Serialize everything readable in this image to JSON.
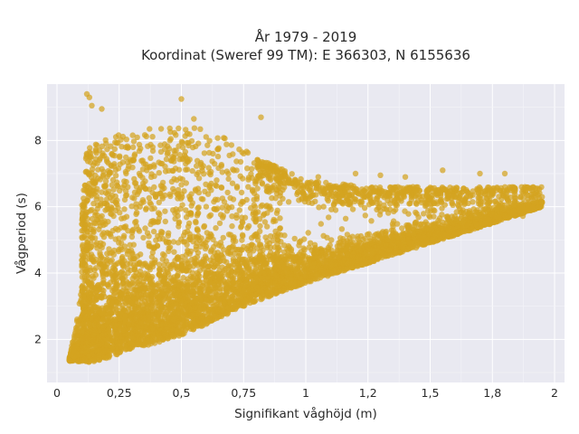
{
  "chart_data": {
    "type": "scatter",
    "title_lines": [
      "År 1979 - 2019",
      "Koordinat (Sweref 99 TM): E 366303, N 6155636"
    ],
    "xlabel": "Signifikant våghöjd (m)",
    "ylabel": "Vågperiod (s)",
    "xlim": [
      -0.04,
      2.04
    ],
    "ylim": [
      0.7,
      9.7
    ],
    "x_ticks": [
      0,
      0.25,
      0.5,
      0.75,
      1,
      1.25,
      1.5,
      1.75,
      2
    ],
    "x_tick_labels": [
      "0",
      "0,25",
      "0,5",
      "0,75",
      "1",
      "1,2",
      "1,5",
      "1,8",
      "2"
    ],
    "y_ticks": [
      2,
      4,
      6,
      8
    ],
    "y_tick_labels": [
      "2",
      "4",
      "6",
      "8"
    ],
    "grid": true,
    "marker_color": "#d4a320",
    "background_color": "#e9e9f1",
    "distribution": {
      "lower_envelope": [
        [
          0.05,
          1.35
        ],
        [
          0.15,
          1.3
        ],
        [
          0.3,
          1.7
        ],
        [
          0.5,
          2.1
        ],
        [
          0.75,
          3.0
        ],
        [
          1.0,
          3.7
        ],
        [
          1.25,
          4.3
        ],
        [
          1.5,
          4.9
        ],
        [
          1.75,
          5.5
        ],
        [
          1.95,
          6.0
        ]
      ],
      "upper_envelope": [
        [
          0.05,
          1.6
        ],
        [
          0.12,
          7.8
        ],
        [
          0.25,
          8.2
        ],
        [
          0.5,
          8.5
        ],
        [
          0.65,
          8.2
        ],
        [
          0.8,
          7.5
        ],
        [
          1.0,
          6.8
        ],
        [
          1.25,
          6.6
        ],
        [
          1.5,
          6.6
        ],
        [
          1.75,
          6.6
        ],
        [
          1.95,
          6.6
        ]
      ],
      "outliers": [
        [
          0.12,
          9.4
        ],
        [
          0.13,
          9.3
        ],
        [
          0.5,
          9.25
        ],
        [
          0.18,
          8.95
        ],
        [
          0.14,
          9.05
        ],
        [
          0.82,
          8.7
        ],
        [
          0.55,
          8.65
        ],
        [
          1.05,
          6.9
        ],
        [
          1.2,
          7.0
        ],
        [
          1.3,
          6.95
        ],
        [
          1.4,
          6.9
        ],
        [
          1.55,
          7.1
        ],
        [
          1.7,
          7.0
        ],
        [
          1.8,
          7.0
        ]
      ]
    }
  }
}
